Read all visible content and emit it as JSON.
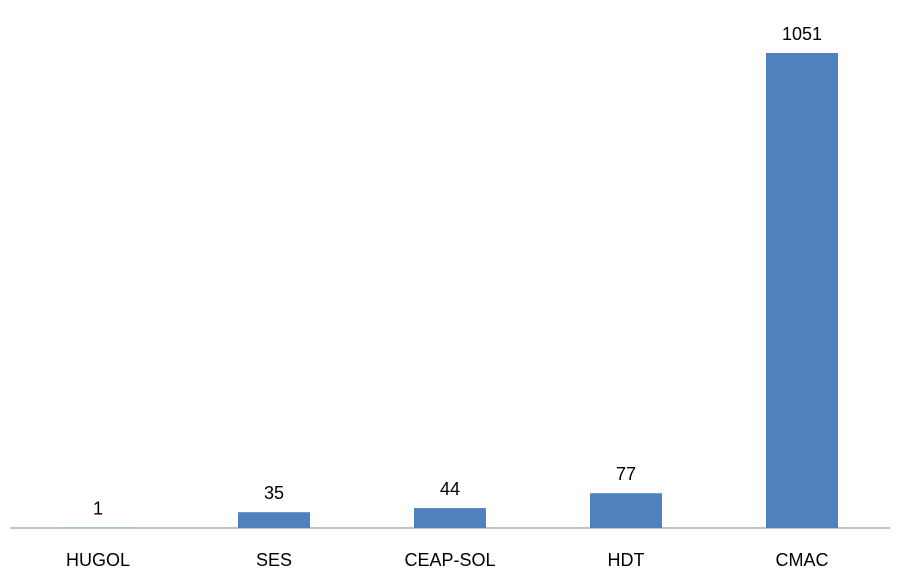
{
  "chart_data": {
    "type": "bar",
    "title": "",
    "xlabel": "",
    "ylabel": "",
    "categories": [
      "HUGOL",
      "SES",
      "CEAP-SOL",
      "HDT",
      "CMAC"
    ],
    "values": [
      1,
      35,
      44,
      77,
      1051
    ],
    "data_labels": [
      "1",
      "35",
      "44",
      "77",
      "1051"
    ],
    "ylim": [
      0,
      1051
    ],
    "colors": {
      "bar": "#4f81bd",
      "axis": "#868686"
    },
    "grid": false,
    "legend": "none"
  }
}
